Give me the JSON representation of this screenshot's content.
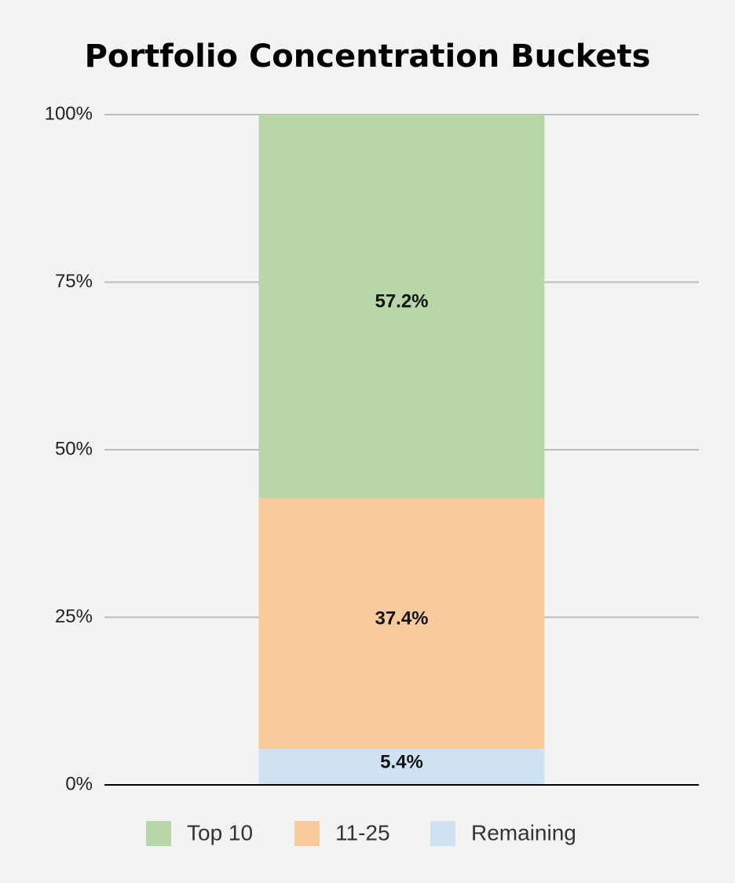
{
  "chart_data": {
    "type": "stacked_bar",
    "title": "Portfolio Concentration Buckets",
    "categories": [
      null
    ],
    "series": [
      {
        "name": "Top 10",
        "color": "#b7d7a8",
        "values": [
          57.2
        ],
        "value_labels": [
          "57.2%"
        ]
      },
      {
        "name": "11-25",
        "color": "#f9cb9c",
        "values": [
          37.4
        ],
        "value_labels": [
          "37.4%"
        ]
      },
      {
        "name": "Remaining",
        "color": "#cfe2f3",
        "values": [
          5.4
        ],
        "value_labels": [
          "5.4%"
        ]
      }
    ],
    "ylim": [
      0,
      100
    ],
    "yticks": [
      {
        "value": 0,
        "label": "0%"
      },
      {
        "value": 25,
        "label": "25%"
      },
      {
        "value": 50,
        "label": "50%"
      },
      {
        "value": 75,
        "label": "75%"
      },
      {
        "value": 100,
        "label": "100%"
      }
    ],
    "grid": true,
    "legend": "bottom"
  }
}
